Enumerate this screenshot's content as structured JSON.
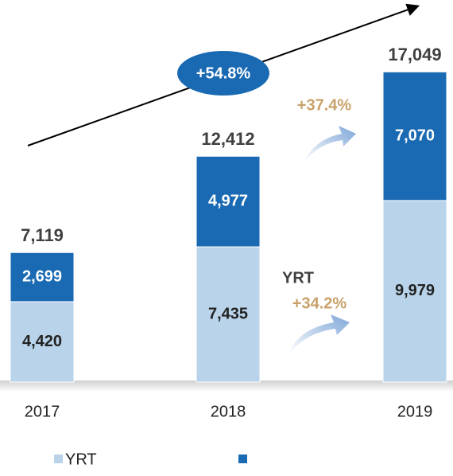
{
  "chart_data": {
    "type": "stacked_bar",
    "categories": [
      "2017",
      "2018",
      "2019"
    ],
    "series": [
      {
        "name": "YRT",
        "color": "#b8d3ea",
        "values": [
          4420,
          7435,
          9979
        ],
        "value_labels": [
          "4,420",
          "7,435",
          "9,979"
        ]
      },
      {
        "color": "#1a6ab3",
        "values": [
          2699,
          4977,
          7070
        ],
        "value_labels": [
          "2,699",
          "4,977",
          "7,070"
        ]
      }
    ],
    "totals": [
      7119,
      12412,
      17049
    ],
    "total_labels": [
      "7,119",
      "12,412",
      "17,049"
    ],
    "ylim": [
      0,
      21000
    ],
    "annotations": [
      "+54.8%",
      "+37.4%",
      "YRT",
      "+34.2%"
    ]
  }
}
